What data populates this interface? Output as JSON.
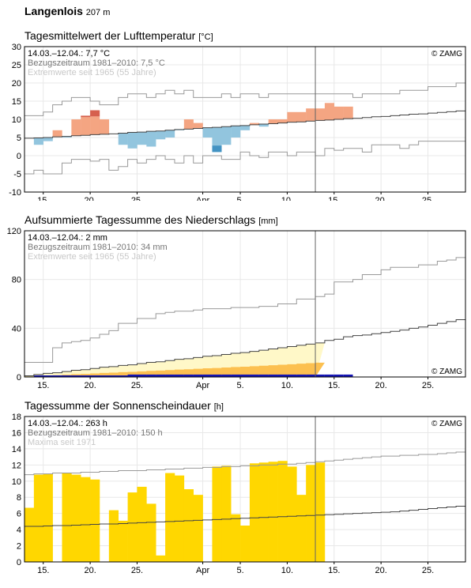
{
  "header": {
    "station": "Langenlois",
    "altitude": "207 m"
  },
  "chart_data": [
    {
      "type": "area",
      "title": "Tagesmittelwert der Lufttemperatur",
      "unit": "[°C]",
      "ylim": [
        -10,
        30
      ],
      "yticks": [
        -10,
        -5,
        0,
        5,
        10,
        15,
        20,
        25,
        30
      ],
      "grid": true,
      "x_start": "2020-03-13",
      "x_end": "2020-04-29",
      "current_date_line": "2020-04-13",
      "xtick_labels": [
        "15.",
        "20.",
        "25.",
        "Apr",
        "5.",
        "10.",
        "15.",
        "20.",
        "25."
      ],
      "info": {
        "line1": "14.03.–12.04.: 7,7 °C",
        "line2": "Bezugszeitraum 1981–2010: 7,5 °C",
        "line3": "Extremwerte seit 1965 (55 Jahre)"
      },
      "credit": "© ZAMG",
      "colors": {
        "warm_strong": "#d6604d",
        "warm": "#f4a582",
        "cold": "#92c5de",
        "cold_strong": "#4393c3",
        "lines": "#999999",
        "mean": "#444444"
      },
      "series": [
        {
          "name": "Tagesmittel",
          "values": [
            3.0,
            4.0,
            7.0,
            5.0,
            10.0,
            11.0,
            12.5,
            10.0,
            6.0,
            3.0,
            2.0,
            3.0,
            2.5,
            4.5,
            5.0,
            7.0,
            10.0,
            9.0,
            5.0,
            1.0,
            3.0,
            5.0,
            7.0,
            9.0,
            8.0,
            10.0,
            10.0,
            12.0,
            12.0,
            13.0,
            13.0,
            14.5,
            13.5,
            13.5
          ]
        },
        {
          "name": "Klimamittel 1981–2010",
          "values": [
            4.8,
            4.9,
            5.0,
            5.2,
            5.3,
            5.5,
            5.6,
            5.8,
            5.9,
            6.0,
            6.2,
            6.4,
            6.5,
            6.7,
            6.8,
            7.0,
            7.2,
            7.3,
            7.5,
            7.7,
            7.8,
            8.0,
            8.2,
            8.3,
            8.5,
            8.7,
            8.8,
            9.0,
            9.2,
            9.3,
            9.5,
            9.7,
            9.8,
            10.0,
            10.2,
            10.3,
            10.5,
            10.7,
            10.8,
            11.0,
            11.2,
            11.4,
            11.5,
            11.7,
            11.9,
            12.1,
            12.3
          ]
        },
        {
          "name": "Maximum",
          "values": [
            11,
            11,
            12,
            14,
            15,
            16,
            16,
            15,
            14,
            14,
            16,
            17,
            17,
            16,
            17,
            18,
            17,
            18,
            16,
            16,
            16,
            17,
            16,
            17,
            17,
            16,
            17,
            17,
            17,
            17,
            17,
            17,
            17,
            17,
            17,
            16,
            17,
            17,
            17,
            17,
            18,
            18,
            18,
            19,
            19,
            19,
            20
          ]
        },
        {
          "name": "Minimum",
          "values": [
            -5,
            -4,
            -5,
            -5,
            -2,
            -1,
            -1,
            -1.5,
            -1,
            -4,
            -3,
            -1,
            -2,
            -1,
            0,
            -1,
            -2,
            0,
            -2,
            0,
            0,
            -1,
            -1,
            1,
            0,
            -0.5,
            1,
            1,
            0,
            1,
            1,
            0,
            2,
            1.5,
            2,
            2,
            1,
            3,
            3,
            3,
            2,
            3,
            4,
            4,
            4,
            4,
            4
          ]
        }
      ]
    },
    {
      "type": "area",
      "title": "Aufsummierte Tagessumme des Niederschlags",
      "unit": "[mm]",
      "ylim": [
        0,
        120
      ],
      "yticks": [
        0,
        40,
        80,
        120
      ],
      "grid": true,
      "x_start": "2020-03-13",
      "x_end": "2020-04-29",
      "current_date_line": "2020-04-13",
      "xtick_labels": [
        "15.",
        "20.",
        "25.",
        "Apr",
        "5.",
        "10.",
        "15.",
        "20.",
        "25."
      ],
      "info": {
        "line1": "14.03.–12.04.: 2 mm",
        "line2": "Bezugszeitraum 1981–2010: 34 mm",
        "line3": "Extremwerte seit 1965 (55 Jahre)"
      },
      "credit": "© ZAMG",
      "colors": {
        "band_outer": "#fff8c8",
        "band_inner": "#fcc050",
        "actual": "#1414b4",
        "lines": "#999999",
        "mean": "#444444"
      },
      "series": [
        {
          "name": "Niederschlag",
          "values": [
            0,
            0,
            0,
            0,
            0,
            0,
            0,
            0,
            0,
            1,
            2,
            2,
            2,
            2,
            2,
            2,
            2,
            2,
            2,
            2,
            2,
            2,
            2,
            2,
            2,
            2,
            2,
            2,
            2,
            2,
            2,
            2,
            2,
            2
          ]
        },
        {
          "name": "Klimamittel 1981–2010",
          "values": [
            1,
            2,
            3,
            3.5,
            4.5,
            5.5,
            6,
            7,
            8,
            8.5,
            9.5,
            10,
            11,
            12,
            12.5,
            13.5,
            14.5,
            15,
            16,
            17,
            17.5,
            18.5,
            19.5,
            20,
            21,
            22,
            23,
            24,
            25,
            26,
            27,
            28,
            30,
            31,
            33,
            34,
            34.5,
            35.5,
            36.5,
            37.5,
            38.5,
            40,
            41,
            42.5,
            44,
            45.5,
            47
          ]
        },
        {
          "name": "Maximum",
          "values": [
            12,
            12,
            12,
            24,
            28,
            29,
            30,
            32,
            35,
            38,
            44,
            44,
            48,
            48,
            52,
            53,
            54,
            54,
            55,
            56,
            56,
            56,
            57,
            57,
            57,
            58,
            58,
            60,
            60,
            64,
            64,
            66,
            68,
            78,
            78,
            80,
            84,
            84,
            88,
            90,
            90,
            90,
            92,
            92,
            95,
            96,
            98
          ]
        },
        {
          "name": "Minimum",
          "values": [
            0,
            0,
            0,
            0,
            0,
            0,
            0,
            0,
            0,
            0,
            0,
            0,
            0,
            0,
            0,
            0,
            0,
            0,
            0,
            0,
            0,
            0,
            0,
            0,
            0,
            0,
            0,
            0,
            0,
            0,
            0,
            0,
            0,
            0,
            0,
            0,
            0,
            0,
            0,
            0,
            0,
            0,
            0,
            0,
            0,
            0,
            0
          ]
        }
      ]
    },
    {
      "type": "bar",
      "title": "Tagessumme der Sonnenscheindauer",
      "unit": "[h]",
      "ylim": [
        0,
        18
      ],
      "yticks": [
        0,
        2,
        4,
        6,
        8,
        10,
        12,
        14,
        16,
        18
      ],
      "grid": true,
      "x_start": "2020-03-13",
      "x_end": "2020-04-29",
      "current_date_line": "2020-04-13",
      "xtick_labels": [
        "15.",
        "20.",
        "25.",
        "Apr",
        "5.",
        "10.",
        "15.",
        "20.",
        "25."
      ],
      "info": {
        "line1": "14.03.–12.04.: 263 h",
        "line2": "Bezugszeitraum 1981–2010: 150 h",
        "line3": "Maxima seit 1971"
      },
      "credit": "© ZAMG",
      "colors": {
        "bars": "#ffd700",
        "lines": "#999999",
        "mean": "#444444"
      },
      "series": [
        {
          "name": "Sonnenscheindauer",
          "values": [
            6.7,
            10.8,
            10.9,
            0,
            11.0,
            10.8,
            10.5,
            10.2,
            0,
            6.4,
            5.1,
            8.6,
            9.3,
            7.2,
            0.8,
            11.0,
            10.7,
            9.0,
            8.3,
            0,
            11.8,
            11.9,
            5.9,
            4.5,
            12.2,
            12.3,
            12.4,
            12.5,
            11.8,
            8.3,
            12.0,
            12.3
          ]
        },
        {
          "name": "Klimamittel 1981–2010",
          "values": [
            4.4,
            4.4,
            4.45,
            4.5,
            4.5,
            4.55,
            4.6,
            4.65,
            4.7,
            4.7,
            4.75,
            4.8,
            4.85,
            4.9,
            4.95,
            5.0,
            5.05,
            5.1,
            5.15,
            5.2,
            5.25,
            5.3,
            5.35,
            5.4,
            5.45,
            5.5,
            5.55,
            5.6,
            5.65,
            5.7,
            5.75,
            5.8,
            5.85,
            5.9,
            5.95,
            6.0,
            6.05,
            6.1,
            6.15,
            6.2,
            6.3,
            6.4,
            6.5,
            6.6,
            6.7,
            6.8,
            6.9
          ]
        },
        {
          "name": "Maximum",
          "values": [
            10.8,
            10.9,
            10.9,
            11.0,
            11.0,
            11.0,
            11.1,
            11.1,
            11.2,
            11.2,
            11.3,
            11.3,
            11.3,
            11.4,
            11.4,
            11.5,
            11.5,
            11.6,
            11.6,
            11.7,
            11.7,
            11.8,
            11.8,
            11.9,
            11.9,
            12.0,
            12.0,
            12.1,
            12.1,
            12.2,
            12.3,
            12.4,
            12.5,
            12.6,
            12.7,
            12.8,
            12.9,
            13.0,
            13.1,
            13.1,
            13.2,
            13.2,
            13.3,
            13.3,
            13.4,
            13.5,
            13.6
          ]
        }
      ]
    }
  ]
}
